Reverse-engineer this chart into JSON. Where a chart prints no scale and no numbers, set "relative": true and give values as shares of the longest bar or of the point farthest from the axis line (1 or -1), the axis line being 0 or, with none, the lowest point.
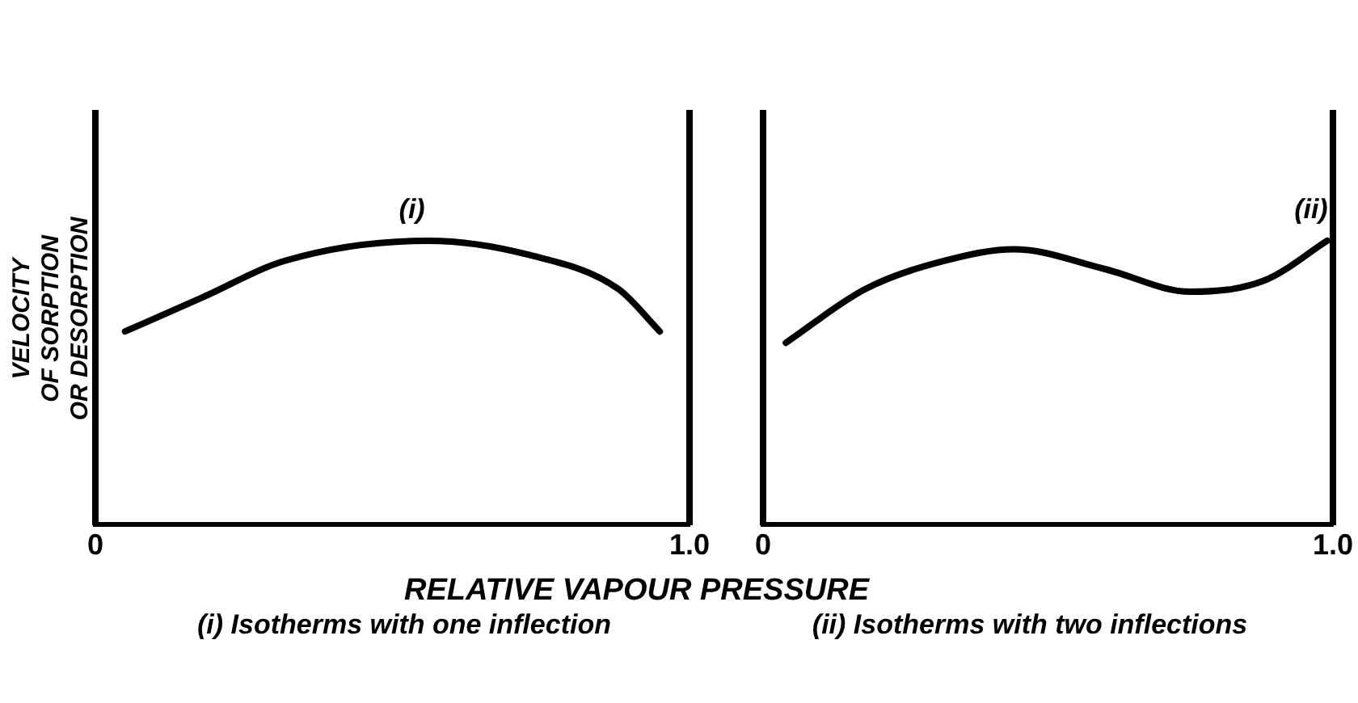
{
  "chart_data": [
    {
      "type": "line",
      "relative": true,
      "tick_labels": "x",
      "grid": false,
      "legend": false,
      "marker": "none",
      "line_style": "solid",
      "ylabel": "VELOCITY OF SORPTION OR DESORPTION",
      "xlabel": "RELATIVE VAPOUR PRESSURE",
      "xlim": [
        0,
        1
      ],
      "xticks": [
        0,
        {
          "value": 1,
          "label": "1.0"
        }
      ],
      "series": [
        {
          "name": "(i)",
          "color": "#000000",
          "x": [
            0.05,
            0.18,
            0.32,
            0.56,
            0.73,
            0.88,
            0.95
          ],
          "values": [
            0.68,
            0.8,
            0.93,
            1,
            0.95,
            0.83,
            0.68
          ]
        }
      ],
      "annotations": [
        "(i) Isotherms with one inflection"
      ]
    },
    {
      "type": "line",
      "relative": true,
      "tick_labels": "x",
      "grid": false,
      "legend": false,
      "marker": "none",
      "line_style": "solid",
      "xlim": [
        0,
        1
      ],
      "xticks": [
        0,
        {
          "value": 1,
          "label": "1.0"
        }
      ],
      "series": [
        {
          "name": "(ii)",
          "color": "#000000",
          "x": [
            0.04,
            0.18,
            0.32,
            0.44,
            0.6,
            0.75,
            0.88,
            0.99
          ],
          "values": [
            0.64,
            0.83,
            0.93,
            0.97,
            0.9,
            0.82,
            0.86,
            1
          ]
        }
      ],
      "annotations": [
        "(ii) Isotherms with two inflections"
      ]
    }
  ]
}
